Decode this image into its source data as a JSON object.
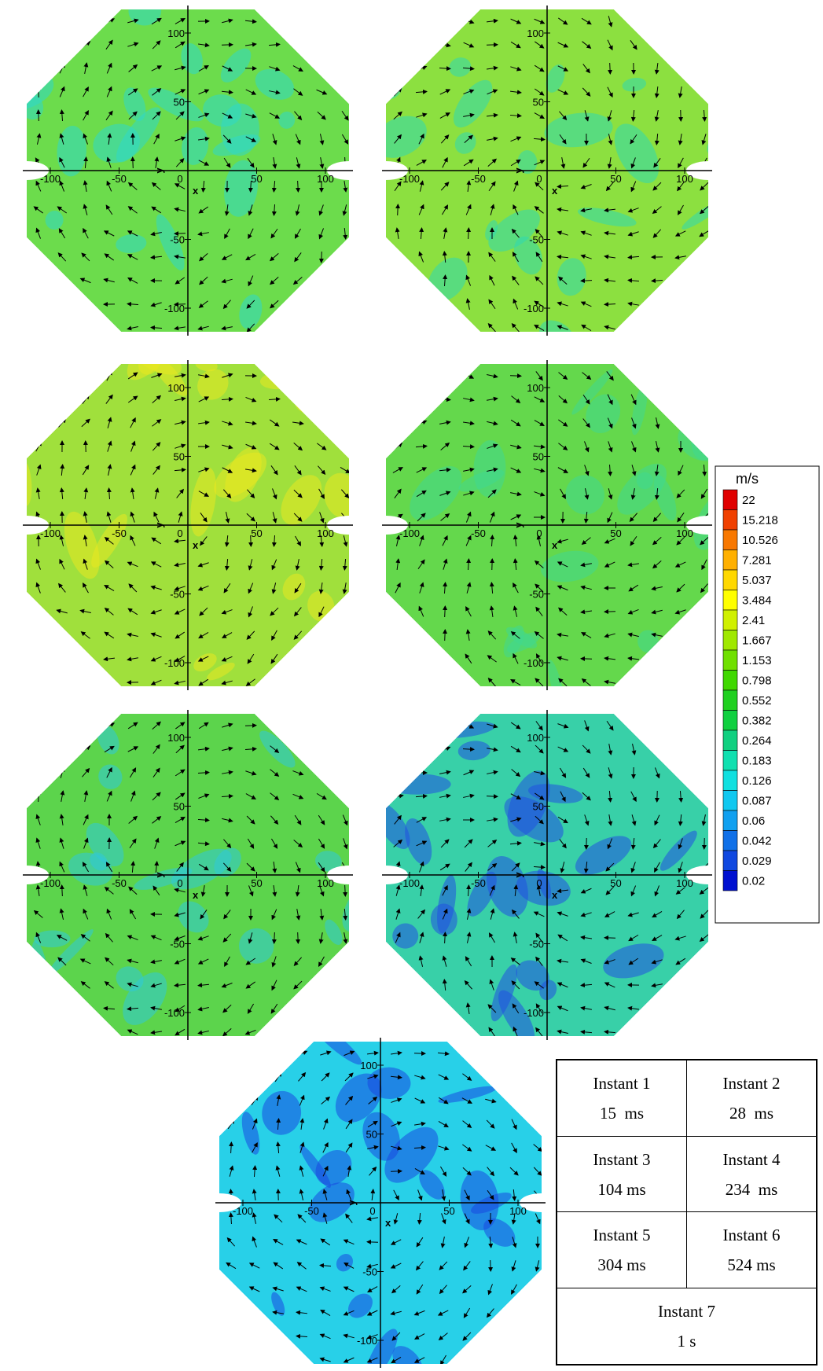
{
  "axes": {
    "xticks": [
      -100,
      -50,
      0,
      50,
      100
    ],
    "yticks": [
      100,
      50,
      -50,
      -100
    ],
    "xlabel": "x",
    "ylabel": "y",
    "lim": [
      -120,
      120
    ]
  },
  "panels": [
    {
      "color": "#6cdc4c",
      "accent": "#30d8c8"
    },
    {
      "color": "#8ce040",
      "accent": "#30d8b0"
    },
    {
      "color": "#a0e03c",
      "accent": "#e8e820"
    },
    {
      "color": "#64d84c",
      "accent": "#40d890"
    },
    {
      "color": "#5cd44c",
      "accent": "#30c8d8"
    },
    {
      "color": "#38d0a8",
      "accent": "#2050e0"
    },
    {
      "color": "#28d0e8",
      "accent": "#1848e0"
    }
  ],
  "colorbar": {
    "unit": "m/s",
    "levels": [
      22,
      15.218,
      10.526,
      7.281,
      5.037,
      3.484,
      2.41,
      1.667,
      1.153,
      0.798,
      0.552,
      0.382,
      0.264,
      0.183,
      0.126,
      0.087,
      0.06,
      0.042,
      0.029,
      0.02
    ],
    "colors": [
      "#e00000",
      "#f04000",
      "#f87800",
      "#ffb000",
      "#ffd800",
      "#ffff00",
      "#d0f000",
      "#a0e800",
      "#70e000",
      "#40d800",
      "#20d020",
      "#10d040",
      "#10d080",
      "#10e0b0",
      "#10e0e0",
      "#10c8f0",
      "#10a0f0",
      "#1070e8",
      "#1048e0",
      "#0010d0"
    ]
  },
  "table": {
    "rows": [
      [
        {
          "label": "Instant 1",
          "time": "15  ms"
        },
        {
          "label": "Instant 2",
          "time": "28  ms"
        }
      ],
      [
        {
          "label": "Instant 3",
          "time": "104 ms"
        },
        {
          "label": "Instant 4",
          "time": "234  ms"
        }
      ],
      [
        {
          "label": "Instant 5",
          "time": "304 ms"
        },
        {
          "label": "Instant 6",
          "time": "524 ms"
        }
      ],
      [
        {
          "label": "Instant 7",
          "time": "1 s"
        }
      ]
    ]
  }
}
